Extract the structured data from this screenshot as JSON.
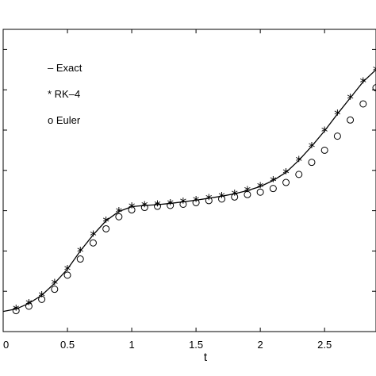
{
  "chart_data": {
    "type": "line",
    "title": "",
    "xlabel": "t",
    "ylabel": "",
    "xlim": [
      0,
      2.9
    ],
    "ylim": [
      0.95,
      1.7
    ],
    "x_ticks": [
      0,
      0.5,
      1,
      1.5,
      2,
      2.5
    ],
    "x_tick_labels": [
      "0",
      "0.5",
      "1",
      "1.5",
      "2",
      "2.5"
    ],
    "y_ticks": [
      1.05,
      1.15,
      1.25,
      1.35,
      1.45,
      1.55,
      1.65
    ],
    "grid": false,
    "legend_position": "top-left",
    "legend": [
      {
        "marker": "–",
        "label": "Exact"
      },
      {
        "marker": "*",
        "label": "RK–4"
      },
      {
        "marker": "o",
        "label": "Euler"
      }
    ],
    "series": [
      {
        "name": "Exact",
        "style": "line",
        "x": [
          0,
          0.1,
          0.2,
          0.3,
          0.4,
          0.5,
          0.6,
          0.7,
          0.8,
          0.9,
          1.0,
          1.1,
          1.2,
          1.3,
          1.4,
          1.5,
          1.6,
          1.7,
          1.8,
          1.9,
          2.0,
          2.1,
          2.2,
          2.3,
          2.4,
          2.5,
          2.6,
          2.7,
          2.8,
          2.9
        ],
        "y": [
          1.0,
          1.006,
          1.02,
          1.04,
          1.07,
          1.105,
          1.15,
          1.19,
          1.225,
          1.248,
          1.26,
          1.263,
          1.265,
          1.268,
          1.272,
          1.276,
          1.281,
          1.286,
          1.292,
          1.3,
          1.31,
          1.325,
          1.345,
          1.375,
          1.41,
          1.448,
          1.49,
          1.53,
          1.57,
          1.6
        ]
      },
      {
        "name": "RK–4",
        "style": "star",
        "x": [
          0.1,
          0.2,
          0.3,
          0.4,
          0.5,
          0.6,
          0.7,
          0.8,
          0.9,
          1.0,
          1.1,
          1.2,
          1.3,
          1.4,
          1.5,
          1.6,
          1.7,
          1.8,
          1.9,
          2.0,
          2.1,
          2.2,
          2.3,
          2.4,
          2.5,
          2.6,
          2.7,
          2.8,
          2.9
        ],
        "y": [
          1.006,
          1.02,
          1.04,
          1.07,
          1.105,
          1.15,
          1.19,
          1.225,
          1.248,
          1.26,
          1.263,
          1.265,
          1.268,
          1.272,
          1.276,
          1.281,
          1.286,
          1.292,
          1.3,
          1.31,
          1.325,
          1.345,
          1.375,
          1.41,
          1.448,
          1.49,
          1.53,
          1.57,
          1.6
        ]
      },
      {
        "name": "Euler",
        "style": "circle",
        "x": [
          0.1,
          0.2,
          0.3,
          0.4,
          0.5,
          0.6,
          0.7,
          0.8,
          0.9,
          1.0,
          1.1,
          1.2,
          1.3,
          1.4,
          1.5,
          1.6,
          1.7,
          1.8,
          1.9,
          2.0,
          2.1,
          2.2,
          2.3,
          2.4,
          2.5,
          2.6,
          2.7,
          2.8,
          2.9
        ],
        "y": [
          1.002,
          1.013,
          1.03,
          1.055,
          1.09,
          1.13,
          1.17,
          1.205,
          1.235,
          1.252,
          1.258,
          1.261,
          1.263,
          1.266,
          1.27,
          1.275,
          1.279,
          1.284,
          1.29,
          1.296,
          1.305,
          1.32,
          1.34,
          1.37,
          1.4,
          1.435,
          1.475,
          1.515,
          1.555
        ]
      }
    ]
  }
}
